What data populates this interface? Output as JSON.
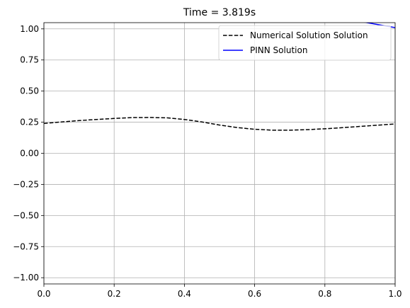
{
  "chart_data": {
    "type": "line",
    "title": "Time = 3.819s",
    "xlabel": "",
    "ylabel": "",
    "xlim": [
      0.0,
      1.0
    ],
    "ylim": [
      -1.05,
      1.05
    ],
    "xticks": [
      0.0,
      0.2,
      0.4,
      0.6,
      0.8,
      1.0
    ],
    "xtick_labels": [
      "0.0",
      "0.2",
      "0.4",
      "0.6",
      "0.8",
      "1.0"
    ],
    "yticks": [
      -1.0,
      -0.75,
      -0.5,
      -0.25,
      0.0,
      0.25,
      0.5,
      0.75,
      1.0
    ],
    "ytick_labels": [
      "−1.00",
      "−0.75",
      "−0.50",
      "−0.25",
      "0.00",
      "0.25",
      "0.50",
      "0.75",
      "1.00"
    ],
    "grid": true,
    "legend_position": "upper right",
    "series": [
      {
        "name": "Numerical Solution Solution",
        "color": "#000000",
        "style": "dashed",
        "x": [
          0.0,
          0.05,
          0.1,
          0.15,
          0.2,
          0.25,
          0.3,
          0.35,
          0.4,
          0.45,
          0.5,
          0.55,
          0.6,
          0.65,
          0.7,
          0.75,
          0.8,
          0.85,
          0.9,
          0.95,
          1.0
        ],
        "y": [
          0.24,
          0.252,
          0.263,
          0.272,
          0.28,
          0.287,
          0.288,
          0.285,
          0.272,
          0.252,
          0.227,
          0.207,
          0.193,
          0.186,
          0.186,
          0.19,
          0.197,
          0.206,
          0.216,
          0.226,
          0.236
        ]
      },
      {
        "name": "PINN Solution",
        "color": "#0000ff",
        "style": "solid",
        "x": [
          0.8,
          0.85,
          0.9,
          0.95,
          1.0
        ],
        "y": [
          1.1,
          1.08,
          1.06,
          1.035,
          1.01
        ]
      }
    ]
  }
}
